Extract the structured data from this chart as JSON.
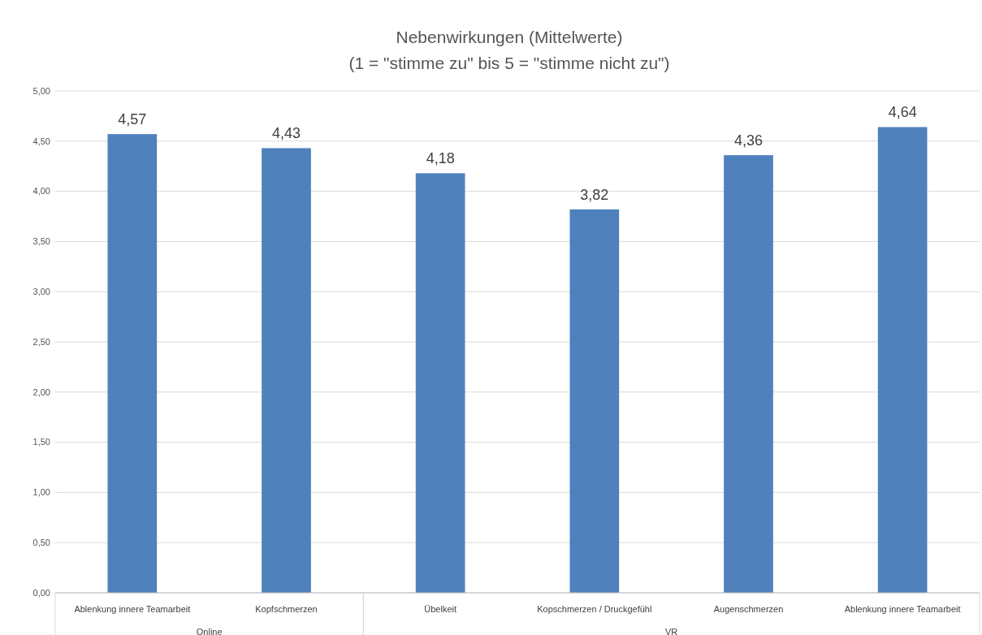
{
  "chart_data": {
    "type": "bar",
    "title": "Nebenwirkungen (Mittelwerte)",
    "subtitle": "(1 = \"stimme zu\" bis 5 = \"stimme nicht zu\")",
    "categories": [
      "Ablenkung innere Teamarbeit",
      "Kopfschmerzen",
      "Übelkeit",
      "Kopschmerzen / Druckgefühl",
      "Augenschmerzen",
      "Ablenkung innere Teamarbeit"
    ],
    "values": [
      4.57,
      4.43,
      4.18,
      3.82,
      4.36,
      4.64
    ],
    "color": "#4f81bd",
    "ylim": [
      0,
      5
    ],
    "yticks": [
      {
        "value": 0,
        "label": "0,00"
      },
      {
        "value": 0.5,
        "label": "0,50"
      },
      {
        "value": 1,
        "label": "1,00"
      },
      {
        "value": 1.5,
        "label": "1,50"
      },
      {
        "value": 2,
        "label": "2,00"
      },
      {
        "value": 2.5,
        "label": "2,50"
      },
      {
        "value": 3,
        "label": "3,00"
      },
      {
        "value": 3.5,
        "label": "3,50"
      },
      {
        "value": 4,
        "label": "4,00"
      },
      {
        "value": 4.5,
        "label": "4,50"
      },
      {
        "value": 5,
        "label": "5,00"
      }
    ],
    "grid": "y",
    "value_labels": [
      "4,57",
      "4,43",
      "4,18",
      "3,82",
      "4,36",
      "4,64"
    ],
    "annotations": [
      "Online",
      "VR"
    ]
  }
}
